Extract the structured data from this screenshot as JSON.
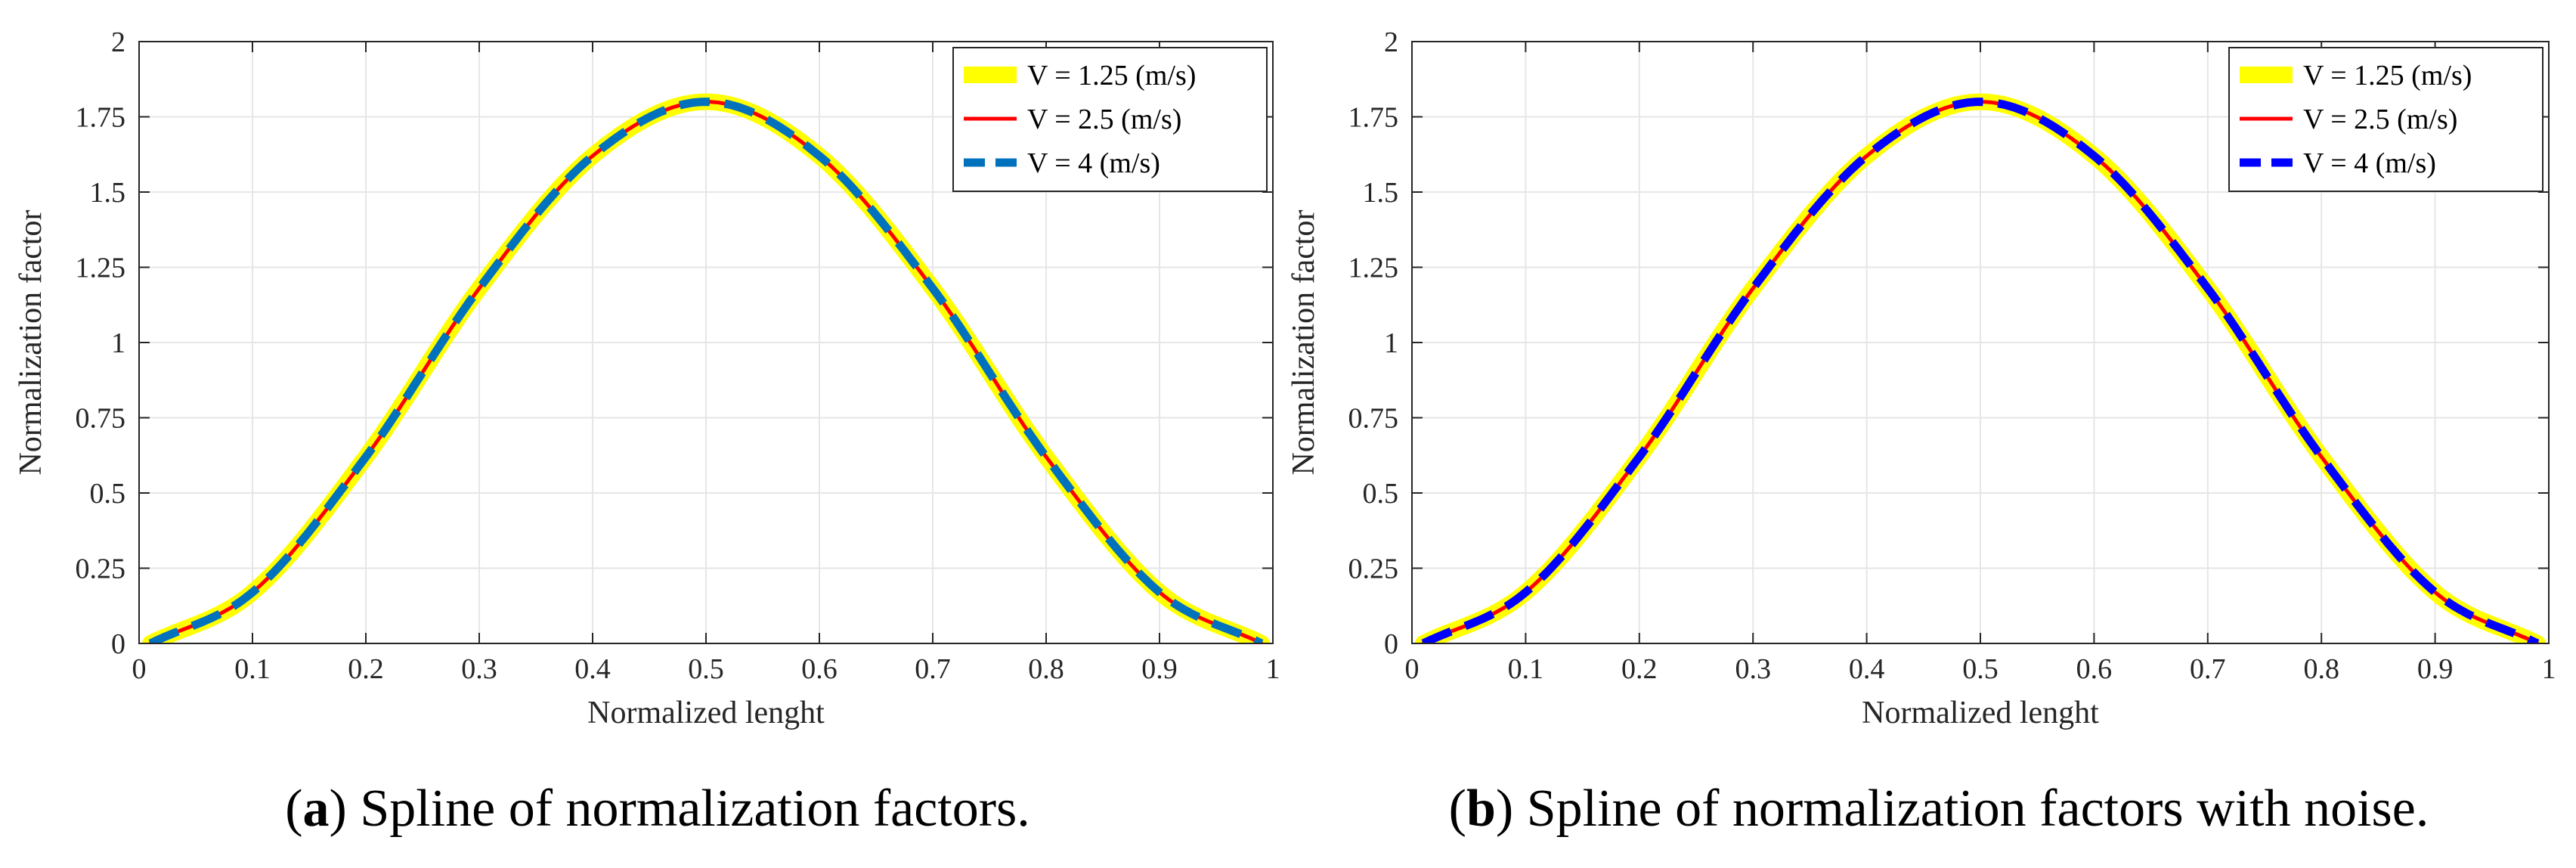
{
  "chart_data": [
    {
      "type": "line",
      "panel_label": "a",
      "caption": "Spline of normalization factors.",
      "xlabel": "Normalized lenght",
      "ylabel": "Normalization factor",
      "xlim": [
        0,
        1
      ],
      "ylim": [
        0,
        2
      ],
      "xticks": [
        0,
        0.1,
        0.2,
        0.3,
        0.4,
        0.5,
        0.6,
        0.7,
        0.8,
        0.9,
        1
      ],
      "xtick_labels": [
        "0",
        "0.1",
        "0.2",
        "0.3",
        "0.4",
        "0.5",
        "0.6",
        "0.7",
        "0.8",
        "0.9",
        "1"
      ],
      "yticks": [
        0,
        0.25,
        0.5,
        0.75,
        1,
        1.25,
        1.5,
        1.75,
        2
      ],
      "ytick_labels": [
        "0",
        "0.25",
        "0.5",
        "0.75",
        "1",
        "1.25",
        "1.5",
        "1.75",
        "2"
      ],
      "grid": true,
      "legend_position": "top-right",
      "x": [
        0.01,
        0.1,
        0.2,
        0.3,
        0.4,
        0.5,
        0.6,
        0.7,
        0.8,
        0.9,
        0.99
      ],
      "series": [
        {
          "name": "V = 1.25 (m/s)",
          "color": "#ffff00",
          "style": "thick-solid",
          "values": [
            0.0,
            0.17,
            0.62,
            1.18,
            1.62,
            1.8,
            1.62,
            1.18,
            0.62,
            0.17,
            0.0
          ]
        },
        {
          "name": "V = 2.5 (m/s)",
          "color": "#ff0000",
          "style": "solid",
          "values": [
            0.0,
            0.17,
            0.62,
            1.18,
            1.62,
            1.8,
            1.62,
            1.18,
            0.62,
            0.17,
            0.0
          ]
        },
        {
          "name": "V = 4 (m/s)",
          "color": "#0072bd",
          "style": "dashed",
          "values": [
            0.0,
            0.17,
            0.62,
            1.18,
            1.62,
            1.8,
            1.62,
            1.18,
            0.62,
            0.17,
            0.0
          ]
        }
      ]
    },
    {
      "type": "line",
      "panel_label": "b",
      "caption": "Spline of normalization factors with noise.",
      "xlabel": "Normalized lenght",
      "ylabel": "Normalization factor",
      "xlim": [
        0,
        1
      ],
      "ylim": [
        0,
        2
      ],
      "xticks": [
        0,
        0.1,
        0.2,
        0.3,
        0.4,
        0.5,
        0.6,
        0.7,
        0.8,
        0.9,
        1
      ],
      "xtick_labels": [
        "0",
        "0.1",
        "0.2",
        "0.3",
        "0.4",
        "0.5",
        "0.6",
        "0.7",
        "0.8",
        "0.9",
        "1"
      ],
      "yticks": [
        0,
        0.25,
        0.5,
        0.75,
        1,
        1.25,
        1.5,
        1.75,
        2
      ],
      "ytick_labels": [
        "0",
        "0.25",
        "0.5",
        "0.75",
        "1",
        "1.25",
        "1.5",
        "1.75",
        "2"
      ],
      "grid": true,
      "legend_position": "top-right",
      "x": [
        0.01,
        0.1,
        0.2,
        0.3,
        0.4,
        0.5,
        0.6,
        0.7,
        0.8,
        0.9,
        0.99
      ],
      "series": [
        {
          "name": "V = 1.25 (m/s)",
          "color": "#ffff00",
          "style": "thick-solid",
          "values": [
            0.0,
            0.17,
            0.62,
            1.18,
            1.62,
            1.8,
            1.62,
            1.18,
            0.62,
            0.17,
            0.0
          ]
        },
        {
          "name": "V = 2.5 (m/s)",
          "color": "#ff0000",
          "style": "solid",
          "values": [
            0.0,
            0.17,
            0.62,
            1.18,
            1.62,
            1.8,
            1.62,
            1.18,
            0.62,
            0.17,
            0.0
          ]
        },
        {
          "name": "V = 4 (m/s)",
          "color": "#0000ff",
          "style": "dashed",
          "values": [
            0.0,
            0.17,
            0.62,
            1.18,
            1.62,
            1.8,
            1.62,
            1.18,
            0.62,
            0.17,
            0.0
          ]
        }
      ]
    }
  ]
}
